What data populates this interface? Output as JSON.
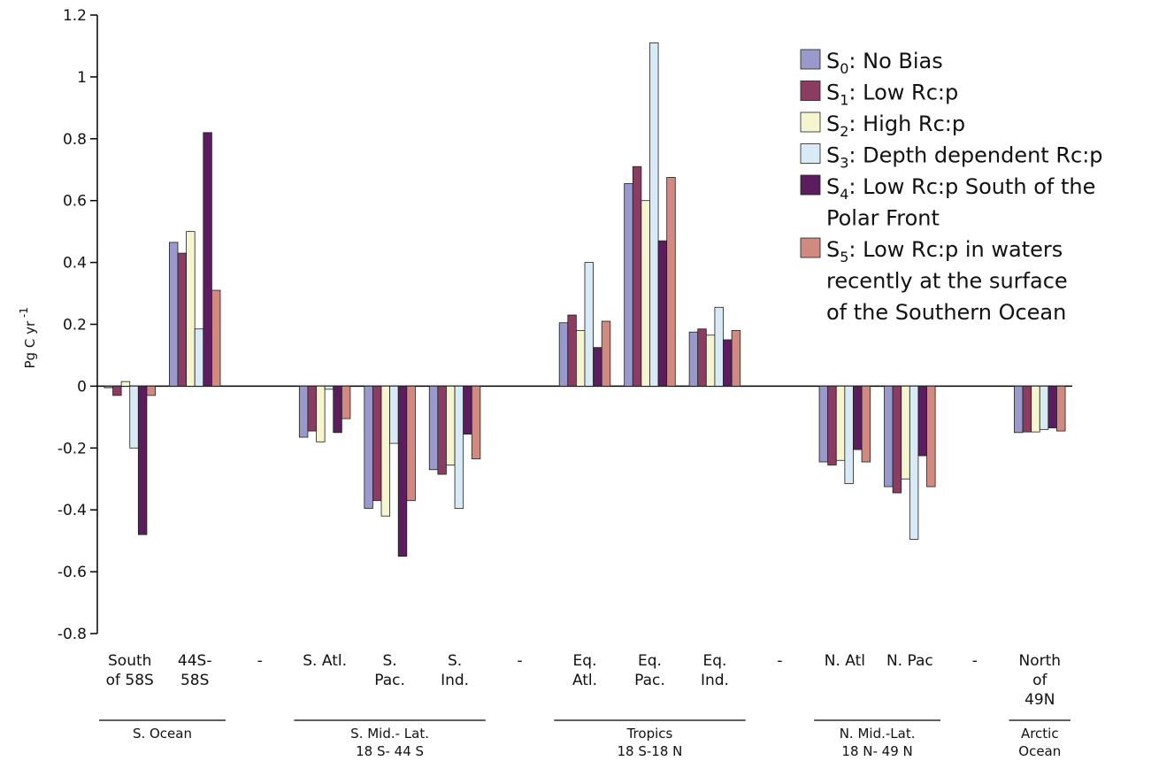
{
  "chart_data": {
    "type": "bar",
    "ylabel": "Pg C yr",
    "ylabel_exponent": "-1",
    "ylim": [
      -0.8,
      1.2
    ],
    "yticks": [
      "1.2",
      "1",
      "0.8",
      "0.6",
      "0.4",
      "0.2",
      "0",
      "-0.2",
      "-0.4",
      "-0.6",
      "-0.8"
    ],
    "categories": [
      [
        "South",
        "of 58S"
      ],
      [
        "44S-",
        "58S"
      ],
      [
        "-"
      ],
      [
        "S. Atl."
      ],
      [
        "S.",
        "Pac."
      ],
      [
        "S.",
        "Ind."
      ],
      [
        "-"
      ],
      [
        "Eq.",
        "Atl."
      ],
      [
        "Eq.",
        "Pac."
      ],
      [
        "Eq.",
        "Ind."
      ],
      [
        "-"
      ],
      [
        "N. Atl"
      ],
      [
        "N. Pac"
      ],
      [
        "-"
      ],
      [
        "North",
        "of",
        "49N"
      ]
    ],
    "series": [
      {
        "name": "S",
        "sub": "0",
        "rest": ": No Bias",
        "color": "#9999cc",
        "values": [
          -0.005,
          0.465,
          null,
          -0.165,
          -0.395,
          -0.27,
          null,
          0.205,
          0.655,
          0.175,
          null,
          -0.245,
          -0.325,
          null,
          -0.15
        ]
      },
      {
        "name": "S",
        "sub": "1",
        "rest": ": Low Rc:p",
        "color": "#8a3d60",
        "values": [
          -0.03,
          0.43,
          null,
          -0.145,
          -0.37,
          -0.285,
          null,
          0.23,
          0.71,
          0.185,
          null,
          -0.255,
          -0.345,
          null,
          -0.148
        ]
      },
      {
        "name": "S",
        "sub": "2",
        "rest": ": High Rc:p",
        "color": "#f5f5cf",
        "values": [
          0.015,
          0.5,
          null,
          -0.18,
          -0.42,
          -0.255,
          null,
          0.18,
          0.6,
          0.165,
          null,
          -0.24,
          -0.3,
          null,
          -0.148
        ]
      },
      {
        "name": "S",
        "sub": "3",
        "rest": ": Depth dependent Rc:p",
        "color": "#d9eaf7",
        "values": [
          -0.2,
          0.185,
          null,
          -0.01,
          -0.185,
          -0.395,
          null,
          0.4,
          1.11,
          0.255,
          null,
          -0.315,
          -0.495,
          null,
          -0.14
        ]
      },
      {
        "name": "S",
        "sub": "4",
        "rest": ": Low Rc:p South of the",
        "rest2": "Polar Front",
        "color": "#5b1d5e",
        "values": [
          -0.48,
          0.82,
          null,
          -0.15,
          -0.55,
          -0.155,
          null,
          0.125,
          0.47,
          0.15,
          null,
          -0.205,
          -0.225,
          null,
          -0.135
        ]
      },
      {
        "name": "S",
        "sub": "5",
        "rest": ": Low Rc:p in waters",
        "rest2": "recently at the surface",
        "rest3": "of the Southern Ocean",
        "color": "#d08a80",
        "values": [
          -0.03,
          0.31,
          null,
          -0.105,
          -0.37,
          -0.235,
          null,
          0.21,
          0.675,
          0.18,
          null,
          -0.245,
          -0.325,
          null,
          -0.145
        ]
      }
    ],
    "groups": [
      {
        "lines": [
          "S. Ocean"
        ],
        "from": 0,
        "to": 1
      },
      {
        "lines": [
          "S. Mid.- Lat.",
          "18 S- 44 S"
        ],
        "from": 3,
        "to": 5
      },
      {
        "lines": [
          "Tropics",
          "18 S-18 N"
        ],
        "from": 7,
        "to": 9
      },
      {
        "lines": [
          "N. Mid.-Lat.",
          "18 N- 49 N"
        ],
        "from": 11,
        "to": 12
      },
      {
        "lines": [
          "Arctic",
          "Ocean"
        ],
        "from": 14,
        "to": 14
      }
    ],
    "legend_position": "top-right",
    "grid": false
  }
}
